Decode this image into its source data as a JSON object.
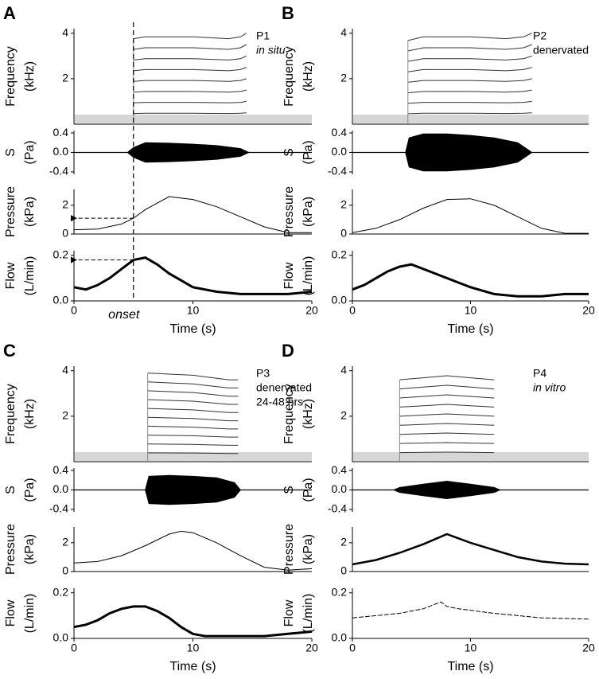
{
  "chart_data": [
    {
      "type": "spectrogram",
      "panel": "A",
      "annotation": [
        {
          "text": "P1"
        },
        {
          "text": "in situ",
          "style": "italic"
        }
      ],
      "ylabel": [
        "Frequency",
        "(kHz)"
      ],
      "xlim": [
        0,
        20
      ],
      "ylim": [
        0,
        4.2
      ],
      "yticks": [
        2,
        4
      ],
      "x": [
        5,
        6,
        10,
        13,
        14,
        14.5
      ],
      "series": [
        {
          "values": [
            0.47,
            0.48,
            0.48,
            0.47,
            0.48,
            0.5
          ]
        },
        {
          "values": [
            0.94,
            0.96,
            0.96,
            0.94,
            0.96,
            1.0
          ]
        },
        {
          "values": [
            1.41,
            1.44,
            1.44,
            1.41,
            1.44,
            1.5
          ]
        },
        {
          "values": [
            1.88,
            1.92,
            1.92,
            1.88,
            1.92,
            2.0
          ]
        },
        {
          "values": [
            2.35,
            2.4,
            2.4,
            2.35,
            2.4,
            2.5
          ]
        },
        {
          "values": [
            2.82,
            2.88,
            2.88,
            2.82,
            2.88,
            3.0
          ]
        },
        {
          "values": [
            3.29,
            3.36,
            3.36,
            3.29,
            3.36,
            3.5
          ]
        },
        {
          "values": [
            3.76,
            3.84,
            3.84,
            3.76,
            3.84,
            4.0
          ]
        }
      ]
    },
    {
      "type": "envelope",
      "ylabel": [
        "S",
        "(Pa)"
      ],
      "xlim": [
        0,
        20
      ],
      "ylim": [
        -0.45,
        0.45
      ],
      "yticks": [
        0.4,
        {
          "value": 0,
          "label": "0.0"
        },
        -0.4
      ],
      "x": [
        4.5,
        5,
        6,
        8,
        10,
        12,
        14,
        14.7
      ],
      "values": [
        0,
        0.1,
        0.2,
        0.19,
        0.17,
        0.14,
        0.08,
        0
      ]
    },
    {
      "type": "line",
      "ylabel": [
        "Pressure",
        "(kPa)"
      ],
      "xlim": [
        0,
        20
      ],
      "ylim": [
        0,
        3.1
      ],
      "yticks": [
        0,
        2
      ],
      "arrow_y": 1.1,
      "x": [
        0,
        2,
        4,
        5,
        6,
        8,
        10,
        12,
        14,
        16,
        18,
        20
      ],
      "values": [
        0.3,
        0.35,
        0.7,
        1.1,
        1.7,
        2.6,
        2.4,
        1.9,
        1.2,
        0.5,
        0.1,
        0.1
      ]
    },
    {
      "type": "line",
      "ylabel": [
        "Flow",
        "(L/min)"
      ],
      "xlabel": "Time (s)",
      "xlim": [
        0,
        20
      ],
      "ylim": [
        0,
        0.22
      ],
      "yticks": [
        {
          "value": 0,
          "label": "0.0"
        },
        0.2
      ],
      "xticks": [
        0,
        10,
        20
      ],
      "arrow_y": 0.18,
      "onset": 5,
      "onset_label": "onset",
      "width": 3,
      "x": [
        0,
        1,
        2,
        3,
        4,
        5,
        6,
        7,
        8,
        9,
        10,
        12,
        14,
        16,
        18,
        20
      ],
      "values": [
        0.06,
        0.05,
        0.07,
        0.1,
        0.14,
        0.18,
        0.19,
        0.16,
        0.12,
        0.09,
        0.06,
        0.04,
        0.03,
        0.03,
        0.03,
        0.04
      ]
    },
    {
      "type": "spectrogram",
      "panel": "B",
      "annotation": [
        {
          "text": "P2"
        },
        {
          "text": "denervated"
        }
      ],
      "ylabel": [
        "Frequency",
        "(kHz)"
      ],
      "xlim": [
        0,
        20
      ],
      "ylim": [
        0,
        4.2
      ],
      "yticks": [
        2,
        4
      ],
      "x": [
        4.7,
        6,
        10,
        13,
        14.5,
        15.2
      ],
      "series": [
        {
          "values": [
            0.46,
            0.48,
            0.48,
            0.47,
            0.48,
            0.5
          ]
        },
        {
          "values": [
            0.92,
            0.96,
            0.96,
            0.94,
            0.96,
            1.0
          ]
        },
        {
          "values": [
            1.38,
            1.44,
            1.44,
            1.41,
            1.44,
            1.5
          ]
        },
        {
          "values": [
            1.84,
            1.92,
            1.92,
            1.88,
            1.92,
            2.0
          ]
        },
        {
          "values": [
            2.3,
            2.4,
            2.4,
            2.35,
            2.4,
            2.5
          ]
        },
        {
          "values": [
            2.76,
            2.88,
            2.88,
            2.82,
            2.88,
            3.0
          ]
        },
        {
          "values": [
            3.22,
            3.36,
            3.36,
            3.29,
            3.36,
            3.5
          ]
        },
        {
          "values": [
            3.68,
            3.84,
            3.84,
            3.76,
            3.84,
            4.0
          ]
        }
      ]
    },
    {
      "type": "envelope",
      "ylabel": [
        "S",
        "(Pa)"
      ],
      "xlim": [
        0,
        20
      ],
      "ylim": [
        -0.45,
        0.45
      ],
      "yticks": [
        0.4,
        {
          "value": 0,
          "label": "0.0"
        },
        -0.4
      ],
      "x": [
        4.5,
        4.8,
        6,
        8,
        10,
        12,
        14,
        15.2
      ],
      "values": [
        0,
        0.3,
        0.38,
        0.38,
        0.35,
        0.3,
        0.2,
        0
      ]
    },
    {
      "type": "line",
      "ylabel": [
        "Pressure",
        "(kPa)"
      ],
      "xlim": [
        0,
        20
      ],
      "ylim": [
        0,
        3.1
      ],
      "yticks": [
        0,
        2
      ],
      "x": [
        0,
        2,
        4,
        6,
        8,
        10,
        12,
        14,
        16,
        18,
        20
      ],
      "values": [
        0.1,
        0.4,
        1.0,
        1.8,
        2.4,
        2.45,
        2.0,
        1.2,
        0.4,
        0.05,
        0.05
      ]
    },
    {
      "type": "line",
      "ylabel": [
        "Flow",
        "(L/min)"
      ],
      "xlabel": "Time (s)",
      "xlim": [
        0,
        20
      ],
      "ylim": [
        0,
        0.22
      ],
      "yticks": [
        {
          "value": 0,
          "label": "0.0"
        },
        0.2
      ],
      "xticks": [
        0,
        10,
        20
      ],
      "width": 3,
      "x": [
        0,
        1,
        2,
        3,
        4,
        5,
        6,
        7,
        8,
        9,
        10,
        12,
        14,
        16,
        18,
        20
      ],
      "values": [
        0.05,
        0.07,
        0.1,
        0.13,
        0.15,
        0.16,
        0.14,
        0.12,
        0.1,
        0.08,
        0.06,
        0.03,
        0.02,
        0.02,
        0.03,
        0.03
      ]
    },
    {
      "type": "spectrogram",
      "panel": "C",
      "annotation": [
        {
          "text": "P3"
        },
        {
          "text": "denervated"
        },
        {
          "text": "24-48 hrs"
        }
      ],
      "ylabel": [
        "Frequency",
        "(kHz)"
      ],
      "xlim": [
        0,
        20
      ],
      "ylim": [
        0,
        4.2
      ],
      "yticks": [
        2,
        4
      ],
      "x": [
        6.2,
        8,
        10,
        11.5,
        13,
        13.8
      ],
      "series": [
        {
          "values": [
            0.39,
            0.385,
            0.38,
            0.37,
            0.36,
            0.36
          ]
        },
        {
          "values": [
            0.78,
            0.77,
            0.76,
            0.74,
            0.72,
            0.72
          ]
        },
        {
          "values": [
            1.17,
            1.155,
            1.14,
            1.11,
            1.08,
            1.08
          ]
        },
        {
          "values": [
            1.56,
            1.54,
            1.52,
            1.48,
            1.44,
            1.44
          ]
        },
        {
          "values": [
            1.95,
            1.925,
            1.9,
            1.85,
            1.8,
            1.8
          ]
        },
        {
          "values": [
            2.34,
            2.31,
            2.28,
            2.22,
            2.16,
            2.16
          ]
        },
        {
          "values": [
            2.73,
            2.695,
            2.66,
            2.59,
            2.52,
            2.52
          ]
        },
        {
          "values": [
            3.12,
            3.08,
            3.04,
            2.96,
            2.88,
            2.88
          ]
        },
        {
          "values": [
            3.51,
            3.465,
            3.42,
            3.33,
            3.24,
            3.24
          ]
        },
        {
          "values": [
            3.9,
            3.85,
            3.8,
            3.7,
            3.6,
            3.6
          ]
        }
      ]
    },
    {
      "type": "envelope",
      "ylabel": [
        "S",
        "(Pa)"
      ],
      "xlim": [
        0,
        20
      ],
      "ylim": [
        -0.45,
        0.45
      ],
      "yticks": [
        0.4,
        {
          "value": 0,
          "label": "0.0"
        },
        -0.4
      ],
      "x": [
        6,
        6.3,
        8,
        10,
        12,
        13.5,
        14
      ],
      "values": [
        0,
        0.28,
        0.3,
        0.28,
        0.25,
        0.15,
        0
      ]
    },
    {
      "type": "line",
      "ylabel": [
        "Pressure",
        "(kPa)"
      ],
      "xlim": [
        0,
        20
      ],
      "ylim": [
        0,
        3.1
      ],
      "yticks": [
        0,
        2
      ],
      "x": [
        0,
        2,
        4,
        6,
        8,
        9,
        10,
        12,
        14,
        16,
        18,
        20
      ],
      "values": [
        0.6,
        0.7,
        1.1,
        1.8,
        2.6,
        2.8,
        2.7,
        2.0,
        1.1,
        0.3,
        0.1,
        0.2
      ]
    },
    {
      "type": "line",
      "ylabel": [
        "Flow",
        "(L/min)"
      ],
      "xlabel": "Time (s)",
      "xlim": [
        0,
        20
      ],
      "ylim": [
        0,
        0.22
      ],
      "yticks": [
        {
          "value": 0,
          "label": "0.0"
        },
        0.2
      ],
      "xticks": [
        0,
        10,
        20
      ],
      "width": 3,
      "x": [
        0,
        1,
        2,
        3,
        4,
        5,
        6,
        7,
        8,
        9,
        10,
        11,
        12,
        14,
        16,
        18,
        20
      ],
      "values": [
        0.05,
        0.06,
        0.08,
        0.11,
        0.13,
        0.14,
        0.14,
        0.12,
        0.09,
        0.05,
        0.02,
        0.01,
        0.01,
        0.01,
        0.01,
        0.02,
        0.03
      ]
    },
    {
      "type": "spectrogram",
      "panel": "D",
      "annotation": [
        {
          "text": "P4"
        },
        {
          "text": "in vitro",
          "style": "italic"
        }
      ],
      "ylabel": [
        "Frequency",
        "(kHz)"
      ],
      "xlim": [
        0,
        20
      ],
      "ylim": [
        0,
        4.2
      ],
      "yticks": [
        2,
        4
      ],
      "x": [
        4,
        6,
        8,
        10,
        12
      ],
      "series": [
        {
          "values": [
            0.4,
            0.41,
            0.42,
            0.41,
            0.4
          ]
        },
        {
          "values": [
            0.8,
            0.82,
            0.84,
            0.82,
            0.8
          ]
        },
        {
          "values": [
            1.2,
            1.23,
            1.26,
            1.23,
            1.2
          ]
        },
        {
          "values": [
            1.6,
            1.64,
            1.68,
            1.64,
            1.6
          ]
        },
        {
          "values": [
            2.0,
            2.05,
            2.1,
            2.05,
            2.0
          ]
        },
        {
          "values": [
            2.4,
            2.46,
            2.52,
            2.46,
            2.4
          ]
        },
        {
          "values": [
            2.8,
            2.87,
            2.94,
            2.87,
            2.8
          ]
        },
        {
          "values": [
            3.2,
            3.28,
            3.36,
            3.28,
            3.2
          ]
        },
        {
          "values": [
            3.6,
            3.69,
            3.78,
            3.69,
            3.6
          ]
        }
      ]
    },
    {
      "type": "envelope",
      "ylabel": [
        "S",
        "(Pa)"
      ],
      "xlim": [
        0,
        20
      ],
      "ylim": [
        -0.45,
        0.45
      ],
      "yticks": [
        0.4,
        {
          "value": 0,
          "label": "0.0"
        },
        -0.4
      ],
      "x": [
        3.5,
        4,
        6,
        8,
        10,
        12,
        12.5
      ],
      "values": [
        0,
        0.05,
        0.12,
        0.18,
        0.12,
        0.05,
        0
      ]
    },
    {
      "type": "line",
      "ylabel": [
        "Pressure",
        "(kPa)"
      ],
      "xlim": [
        0,
        20
      ],
      "ylim": [
        0,
        3.1
      ],
      "yticks": [
        0,
        2
      ],
      "width": 2.5,
      "x": [
        0,
        2,
        4,
        6,
        8,
        10,
        12,
        14,
        16,
        18,
        20
      ],
      "values": [
        0.5,
        0.8,
        1.3,
        1.9,
        2.6,
        2.0,
        1.5,
        1.0,
        0.7,
        0.55,
        0.5
      ]
    },
    {
      "type": "line",
      "ylabel": [
        "Flow",
        "(L/min)"
      ],
      "xlabel": "Time (s)",
      "xlim": [
        0,
        20
      ],
      "ylim": [
        0,
        0.22
      ],
      "yticks": [
        {
          "value": 0,
          "label": "0.0"
        },
        0.2
      ],
      "xticks": [
        0,
        10,
        20
      ],
      "width": 1,
      "dash": true,
      "x": [
        0,
        2,
        4,
        6,
        7,
        7.5,
        8,
        9,
        12,
        16,
        20
      ],
      "values": [
        0.09,
        0.1,
        0.11,
        0.13,
        0.15,
        0.16,
        0.14,
        0.13,
        0.11,
        0.09,
        0.085
      ]
    }
  ]
}
